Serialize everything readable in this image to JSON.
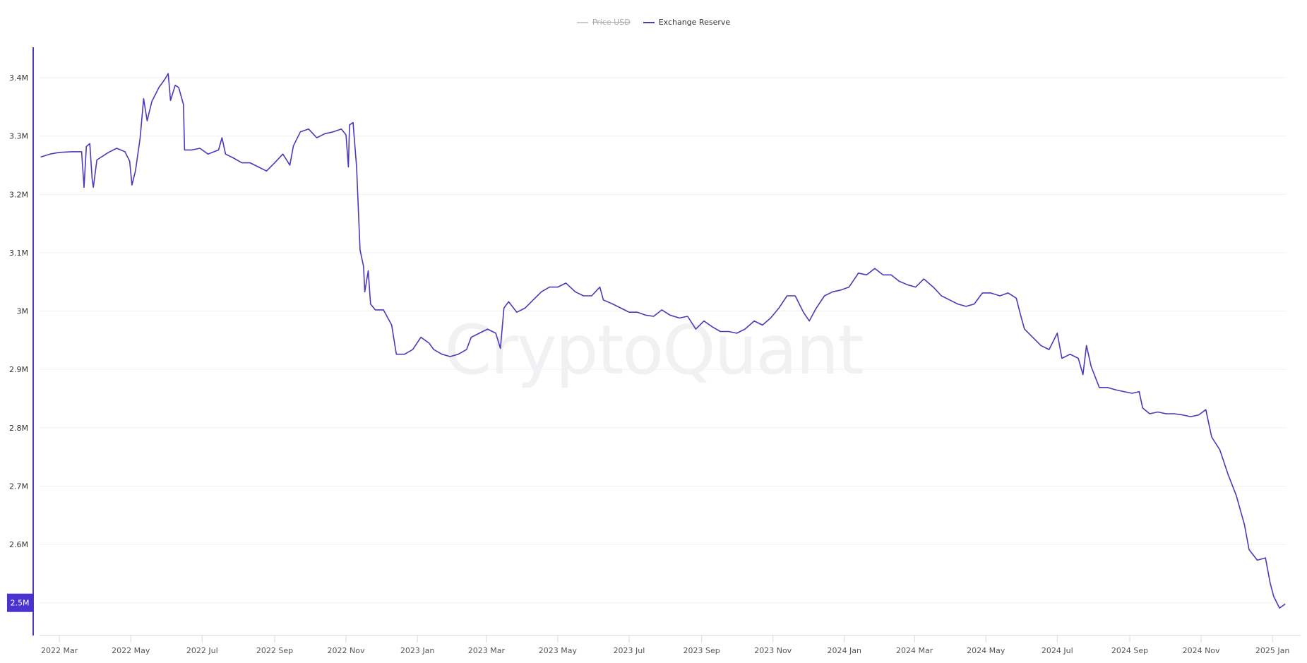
{
  "legend": [
    {
      "label": "Price USD",
      "color": "#cccccc",
      "hidden": true
    },
    {
      "label": "Exchange Reserve",
      "color": "#4a3aba",
      "hidden": false
    }
  ],
  "watermark": "CryptoQuant",
  "chart_data": {
    "type": "line",
    "title": "",
    "xlabel": "",
    "ylabel": "",
    "xlim": [
      "2022-02-12",
      "2025-01-13"
    ],
    "ylim": [
      2444000,
      3452000
    ],
    "grid": true,
    "legend_position": "top",
    "x_ticks": [
      {
        "date": "2022-03-01",
        "label": "2022 Mar"
      },
      {
        "date": "2022-05-01",
        "label": "2022 May"
      },
      {
        "date": "2022-07-01",
        "label": "2022 Jul"
      },
      {
        "date": "2022-09-01",
        "label": "2022 Sep"
      },
      {
        "date": "2022-11-01",
        "label": "2022 Nov"
      },
      {
        "date": "2023-01-01",
        "label": "2023 Jan"
      },
      {
        "date": "2023-03-01",
        "label": "2023 Mar"
      },
      {
        "date": "2023-05-01",
        "label": "2023 May"
      },
      {
        "date": "2023-07-01",
        "label": "2023 Jul"
      },
      {
        "date": "2023-09-01",
        "label": "2023 Sep"
      },
      {
        "date": "2023-11-01",
        "label": "2023 Nov"
      },
      {
        "date": "2024-01-01",
        "label": "2024 Jan"
      },
      {
        "date": "2024-03-01",
        "label": "2024 Mar"
      },
      {
        "date": "2024-05-01",
        "label": "2024 May"
      },
      {
        "date": "2024-07-01",
        "label": "2024 Jul"
      },
      {
        "date": "2024-09-01",
        "label": "2024 Sep"
      },
      {
        "date": "2024-11-01",
        "label": "2024 Nov"
      },
      {
        "date": "2025-01-01",
        "label": "2025 Jan"
      }
    ],
    "y_ticks": [
      {
        "value": 3400000,
        "label": "3.4M"
      },
      {
        "value": 3300000,
        "label": "3.3M"
      },
      {
        "value": 3200000,
        "label": "3.2M"
      },
      {
        "value": 3100000,
        "label": "3.1M"
      },
      {
        "value": 3000000,
        "label": "3M"
      },
      {
        "value": 2900000,
        "label": "2.9M"
      },
      {
        "value": 2800000,
        "label": "2.8M"
      },
      {
        "value": 2700000,
        "label": "2.7M"
      },
      {
        "value": 2600000,
        "label": "2.6M"
      },
      {
        "value": 2500000,
        "label": "2.5M",
        "highlighted": true
      }
    ],
    "highlight_color": "#4a32d0",
    "series": [
      {
        "name": "Exchange Reserve",
        "color": "#4a3aba",
        "points": [
          [
            "2022-02-13",
            3264000
          ],
          [
            "2022-02-21",
            3269000
          ],
          [
            "2022-03-01",
            3272000
          ],
          [
            "2022-03-11",
            3273000
          ],
          [
            "2022-03-20",
            3273000
          ],
          [
            "2022-03-22",
            3212000
          ],
          [
            "2022-03-24",
            3282000
          ],
          [
            "2022-03-27",
            3287000
          ],
          [
            "2022-03-29",
            3226000
          ],
          [
            "2022-03-30",
            3212000
          ],
          [
            "2022-04-02",
            3259000
          ],
          [
            "2022-04-12",
            3272000
          ],
          [
            "2022-04-19",
            3279000
          ],
          [
            "2022-04-26",
            3273000
          ],
          [
            "2022-04-30",
            3257000
          ],
          [
            "2022-05-02",
            3216000
          ],
          [
            "2022-05-05",
            3240000
          ],
          [
            "2022-05-09",
            3297000
          ],
          [
            "2022-05-12",
            3364000
          ],
          [
            "2022-05-15",
            3326000
          ],
          [
            "2022-05-19",
            3359000
          ],
          [
            "2022-05-25",
            3383000
          ],
          [
            "2022-05-30",
            3397000
          ],
          [
            "2022-06-02",
            3407000
          ],
          [
            "2022-06-04",
            3361000
          ],
          [
            "2022-06-08",
            3387000
          ],
          [
            "2022-06-11",
            3383000
          ],
          [
            "2022-06-15",
            3354000
          ],
          [
            "2022-06-16",
            3276000
          ],
          [
            "2022-06-22",
            3276000
          ],
          [
            "2022-06-29",
            3279000
          ],
          [
            "2022-07-06",
            3269000
          ],
          [
            "2022-07-15",
            3276000
          ],
          [
            "2022-07-18",
            3297000
          ],
          [
            "2022-07-21",
            3269000
          ],
          [
            "2022-07-28",
            3262000
          ],
          [
            "2022-08-04",
            3254000
          ],
          [
            "2022-08-11",
            3254000
          ],
          [
            "2022-08-18",
            3247000
          ],
          [
            "2022-08-25",
            3240000
          ],
          [
            "2022-09-01",
            3254000
          ],
          [
            "2022-09-08",
            3269000
          ],
          [
            "2022-09-14",
            3250000
          ],
          [
            "2022-09-17",
            3283000
          ],
          [
            "2022-09-23",
            3307000
          ],
          [
            "2022-09-30",
            3312000
          ],
          [
            "2022-10-07",
            3297000
          ],
          [
            "2022-10-14",
            3304000
          ],
          [
            "2022-10-21",
            3307000
          ],
          [
            "2022-10-28",
            3312000
          ],
          [
            "2022-11-01",
            3302000
          ],
          [
            "2022-11-03",
            3247000
          ],
          [
            "2022-11-04",
            3319000
          ],
          [
            "2022-11-07",
            3323000
          ],
          [
            "2022-11-10",
            3247000
          ],
          [
            "2022-11-13",
            3105000
          ],
          [
            "2022-11-16",
            3076000
          ],
          [
            "2022-11-17",
            3033000
          ],
          [
            "2022-11-20",
            3069000
          ],
          [
            "2022-11-22",
            3012000
          ],
          [
            "2022-11-26",
            3002000
          ],
          [
            "2022-12-03",
            3002000
          ],
          [
            "2022-12-10",
            2976000
          ],
          [
            "2022-12-14",
            2926000
          ],
          [
            "2022-12-21",
            2926000
          ],
          [
            "2022-12-28",
            2934000
          ],
          [
            "2023-01-04",
            2955000
          ],
          [
            "2023-01-11",
            2945000
          ],
          [
            "2023-01-15",
            2934000
          ],
          [
            "2023-01-22",
            2926000
          ],
          [
            "2023-01-29",
            2922000
          ],
          [
            "2023-02-05",
            2926000
          ],
          [
            "2023-02-12",
            2934000
          ],
          [
            "2023-02-16",
            2955000
          ],
          [
            "2023-02-23",
            2962000
          ],
          [
            "2023-03-02",
            2969000
          ],
          [
            "2023-03-09",
            2962000
          ],
          [
            "2023-03-13",
            2936000
          ],
          [
            "2023-03-16",
            3005000
          ],
          [
            "2023-03-20",
            3016000
          ],
          [
            "2023-03-27",
            2998000
          ],
          [
            "2023-04-03",
            3005000
          ],
          [
            "2023-04-10",
            3019000
          ],
          [
            "2023-04-17",
            3033000
          ],
          [
            "2023-04-24",
            3041000
          ],
          [
            "2023-05-01",
            3041000
          ],
          [
            "2023-05-08",
            3048000
          ],
          [
            "2023-05-16",
            3033000
          ],
          [
            "2023-05-23",
            3026000
          ],
          [
            "2023-05-30",
            3026000
          ],
          [
            "2023-06-06",
            3041000
          ],
          [
            "2023-06-09",
            3019000
          ],
          [
            "2023-06-17",
            3012000
          ],
          [
            "2023-06-24",
            3005000
          ],
          [
            "2023-07-01",
            2998000
          ],
          [
            "2023-07-08",
            2998000
          ],
          [
            "2023-07-15",
            2993000
          ],
          [
            "2023-07-22",
            2991000
          ],
          [
            "2023-07-29",
            3002000
          ],
          [
            "2023-08-05",
            2993000
          ],
          [
            "2023-08-13",
            2988000
          ],
          [
            "2023-08-20",
            2991000
          ],
          [
            "2023-08-27",
            2969000
          ],
          [
            "2023-09-03",
            2983000
          ],
          [
            "2023-09-10",
            2973000
          ],
          [
            "2023-09-17",
            2965000
          ],
          [
            "2023-09-24",
            2965000
          ],
          [
            "2023-10-01",
            2962000
          ],
          [
            "2023-10-08",
            2969000
          ],
          [
            "2023-10-16",
            2983000
          ],
          [
            "2023-10-23",
            2976000
          ],
          [
            "2023-10-30",
            2988000
          ],
          [
            "2023-11-06",
            3005000
          ],
          [
            "2023-11-13",
            3026000
          ],
          [
            "2023-11-20",
            3026000
          ],
          [
            "2023-11-27",
            2998000
          ],
          [
            "2023-12-02",
            2983000
          ],
          [
            "2023-12-08",
            3005000
          ],
          [
            "2023-12-15",
            3026000
          ],
          [
            "2023-12-22",
            3033000
          ],
          [
            "2023-12-29",
            3036000
          ],
          [
            "2024-01-05",
            3041000
          ],
          [
            "2024-01-13",
            3065000
          ],
          [
            "2024-01-20",
            3062000
          ],
          [
            "2024-01-27",
            3073000
          ],
          [
            "2024-02-03",
            3062000
          ],
          [
            "2024-02-10",
            3062000
          ],
          [
            "2024-02-17",
            3051000
          ],
          [
            "2024-02-24",
            3045000
          ],
          [
            "2024-03-02",
            3041000
          ],
          [
            "2024-03-09",
            3055000
          ],
          [
            "2024-03-17",
            3041000
          ],
          [
            "2024-03-24",
            3026000
          ],
          [
            "2024-03-31",
            3019000
          ],
          [
            "2024-04-07",
            3012000
          ],
          [
            "2024-04-14",
            3008000
          ],
          [
            "2024-04-21",
            3012000
          ],
          [
            "2024-04-28",
            3031000
          ],
          [
            "2024-05-05",
            3031000
          ],
          [
            "2024-05-13",
            3026000
          ],
          [
            "2024-05-20",
            3031000
          ],
          [
            "2024-05-27",
            3022000
          ],
          [
            "2024-05-30",
            2998000
          ],
          [
            "2024-06-03",
            2969000
          ],
          [
            "2024-06-10",
            2955000
          ],
          [
            "2024-06-17",
            2941000
          ],
          [
            "2024-06-24",
            2934000
          ],
          [
            "2024-07-01",
            2962000
          ],
          [
            "2024-07-05",
            2919000
          ],
          [
            "2024-07-12",
            2926000
          ],
          [
            "2024-07-19",
            2919000
          ],
          [
            "2024-07-23",
            2891000
          ],
          [
            "2024-07-26",
            2941000
          ],
          [
            "2024-07-30",
            2905000
          ],
          [
            "2024-08-06",
            2869000
          ],
          [
            "2024-08-13",
            2869000
          ],
          [
            "2024-08-20",
            2865000
          ],
          [
            "2024-08-27",
            2862000
          ],
          [
            "2024-09-03",
            2859000
          ],
          [
            "2024-09-09",
            2862000
          ],
          [
            "2024-09-12",
            2834000
          ],
          [
            "2024-09-18",
            2824000
          ],
          [
            "2024-09-25",
            2827000
          ],
          [
            "2024-10-02",
            2824000
          ],
          [
            "2024-10-09",
            2824000
          ],
          [
            "2024-10-16",
            2822000
          ],
          [
            "2024-10-23",
            2819000
          ],
          [
            "2024-10-30",
            2822000
          ],
          [
            "2024-11-05",
            2831000
          ],
          [
            "2024-11-10",
            2784000
          ],
          [
            "2024-11-17",
            2762000
          ],
          [
            "2024-11-24",
            2720000
          ],
          [
            "2024-12-01",
            2684000
          ],
          [
            "2024-12-08",
            2634000
          ],
          [
            "2024-12-12",
            2591000
          ],
          [
            "2024-12-19",
            2573000
          ],
          [
            "2024-12-26",
            2577000
          ],
          [
            "2024-12-30",
            2534000
          ],
          [
            "2025-01-02",
            2511000
          ],
          [
            "2025-01-07",
            2491000
          ],
          [
            "2025-01-12",
            2498000
          ]
        ]
      }
    ]
  }
}
